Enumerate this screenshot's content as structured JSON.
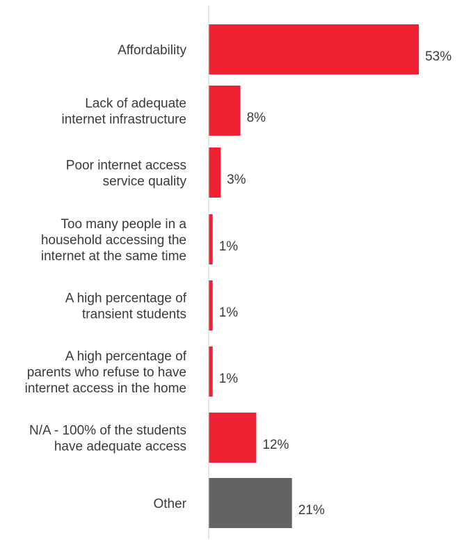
{
  "chart_data": {
    "type": "bar",
    "orientation": "horizontal",
    "categories": [
      [
        "Affordability"
      ],
      [
        "Lack of adequate",
        "internet infrastructure"
      ],
      [
        "Poor internet access",
        "service quality"
      ],
      [
        "Too many people in a",
        "household accessing the",
        "internet at the same time"
      ],
      [
        "A high percentage of",
        "transient students"
      ],
      [
        "A high percentage of",
        "parents who refuse to have",
        "internet access in the home"
      ],
      [
        "N/A - 100% of the students",
        "have adequate access"
      ],
      [
        "Other"
      ]
    ],
    "values": [
      53,
      8,
      3,
      1,
      1,
      1,
      12,
      21
    ],
    "value_labels": [
      "53%",
      "8%",
      "3%",
      "1%",
      "1%",
      "1%",
      "12%",
      "21%"
    ],
    "colors": [
      "#ee2233",
      "#ee2233",
      "#ee2233",
      "#ee2233",
      "#ee2233",
      "#ee2233",
      "#ee2233",
      "#636366"
    ],
    "axis_color": "#cccccc",
    "grid": false,
    "legend": "none",
    "title": "",
    "xlabel": "",
    "ylabel": ""
  }
}
